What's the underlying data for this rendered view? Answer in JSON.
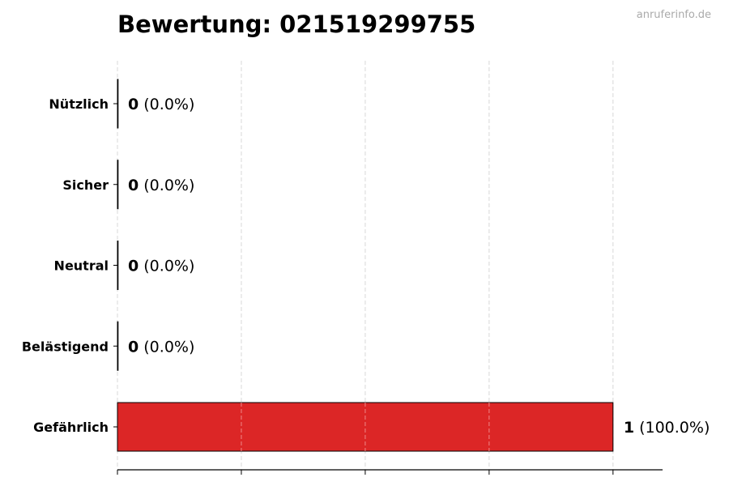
{
  "watermark": "anruferinfo.de",
  "chart_data": {
    "type": "bar",
    "orientation": "horizontal",
    "title": "Bewertung: 021519299755",
    "categories": [
      "Nützlich",
      "Sicher",
      "Neutral",
      "Belästigend",
      "Gefährlich"
    ],
    "values": [
      0,
      0,
      0,
      0,
      1
    ],
    "percent_labels": [
      "(0.0%)",
      "(0.0%)",
      "(0.0%)",
      "(0.0%)",
      "(100.0%)"
    ],
    "xlim": [
      0,
      1.1
    ],
    "xticks": [
      0,
      0.25,
      0.5,
      0.75,
      1.0
    ],
    "xtick_labels_shown": false,
    "grid": "vertical dashed",
    "colors": {
      "Gefährlich": "#dc2626",
      "default": "#dc2626",
      "edge": "#000000"
    }
  }
}
